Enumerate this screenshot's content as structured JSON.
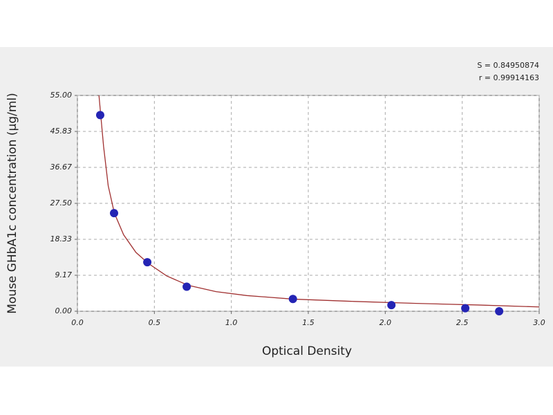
{
  "chart_data": {
    "type": "scatter",
    "annotations": [
      "S = 0.84950874",
      "r = 0.99914163"
    ],
    "xlabel": "Optical Density",
    "ylabel": "Mouse GHbA1c concentration (μg/ml)",
    "xlim": [
      0,
      3
    ],
    "ylim": [
      0,
      55
    ],
    "xticks": [
      {
        "value": 0,
        "label": "0.0"
      },
      0.5,
      {
        "value": 1,
        "label": "1.0"
      },
      1.5,
      {
        "value": 2,
        "label": "2.0"
      },
      2.5,
      {
        "value": 3,
        "label": "3.0"
      }
    ],
    "yticks": [
      {
        "value": 0,
        "label": "0.00"
      },
      9.17,
      18.33,
      {
        "value": 27.5,
        "label": "27.50"
      },
      36.67,
      45.83,
      {
        "value": 55,
        "label": "55.00"
      }
    ],
    "grid": true,
    "series": [
      {
        "kind": "points",
        "color": "#2424b4",
        "x": [
          0.148,
          0.238,
          0.454,
          0.71,
          1.4,
          2.04,
          2.52,
          2.74
        ],
        "values": [
          50,
          25,
          12.5,
          6.25,
          3.125,
          1.56,
          0.78,
          0
        ]
      },
      {
        "kind": "line",
        "color": "#a03030",
        "x": [
          0.14,
          0.17,
          0.2,
          0.24,
          0.3,
          0.38,
          0.46,
          0.58,
          0.72,
          0.9,
          1.1,
          1.4,
          1.8,
          2.2,
          2.6,
          3.0
        ],
        "values": [
          55,
          42,
          32,
          25,
          19.5,
          15,
          12.2,
          9,
          6.6,
          5,
          4,
          3.1,
          2.5,
          2,
          1.6,
          1.1
        ]
      }
    ]
  }
}
